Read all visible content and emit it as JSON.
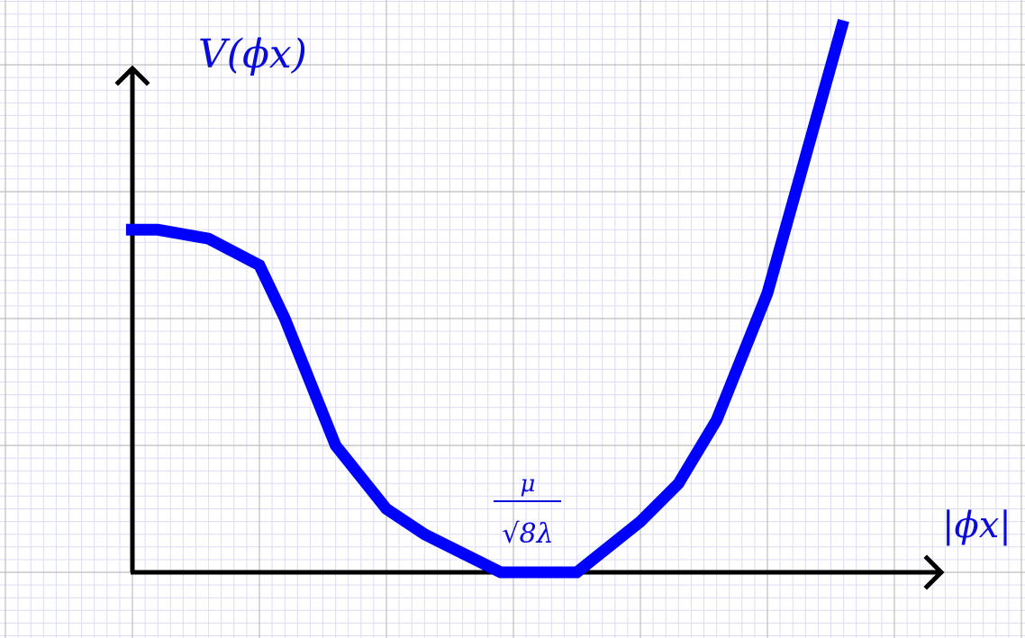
{
  "figure": {
    "y_label": "V(ϕx)",
    "x_label": "|ϕx|",
    "minimum_label": {
      "numerator": "μ",
      "denominator": "√8λ"
    }
  },
  "colors": {
    "curve": "#0000ff",
    "label": "#0a0adc",
    "axes": "#000000",
    "grid_major": "#bdbdbd",
    "grid_minor": "#dcdcf6"
  },
  "chart_data": {
    "type": "line",
    "title": "",
    "xlabel": "|ϕx|",
    "ylabel": "V(ϕx)",
    "xlim": [
      0,
      6.25
    ],
    "ylim": [
      0,
      4
    ],
    "grid": true,
    "series": [
      {
        "name": "V(ϕx)",
        "x": [
          -0.05,
          0.2,
          0.6,
          1.0,
          1.2,
          1.6,
          2.0,
          2.3,
          2.9,
          3.5,
          4.0,
          4.3,
          4.6,
          5.0,
          5.6
        ],
        "y": [
          2.7,
          2.7,
          2.63,
          2.42,
          2.0,
          1.0,
          0.5,
          0.3,
          0.0,
          0.0,
          0.4,
          0.7,
          1.2,
          2.2,
          4.35
        ]
      }
    ],
    "annotations": [
      {
        "text": "μ/√(8λ)",
        "x": 3.1,
        "y": 0.0
      }
    ]
  }
}
